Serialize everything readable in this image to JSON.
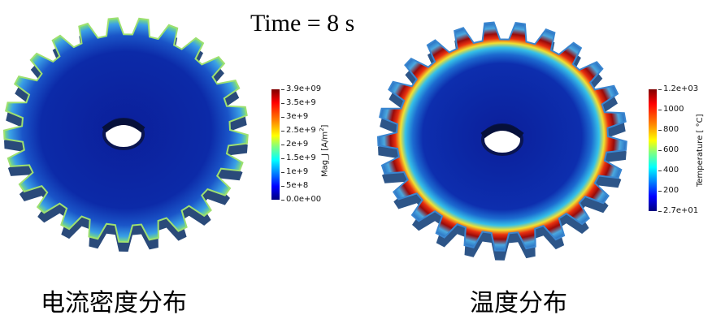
{
  "title": "Time = 8 s",
  "left_panel": {
    "caption": "电流密度分布",
    "colorbar": {
      "title_prefix": "Mag_J [A/m",
      "title_sup": "2",
      "title_suffix": "]",
      "ticks": [
        "3.9e+09",
        "3.5e+9",
        "3e+9",
        "2.5e+9",
        "2e+9",
        "1.5e+9",
        "1e+9",
        "5e+8",
        "0.0e+00"
      ]
    }
  },
  "right_panel": {
    "caption": "温度分布",
    "colorbar": {
      "title": "Temperature [ °C]",
      "ticks": [
        "1.2e+03",
        "1000",
        "800",
        "600",
        "400",
        "200",
        "2.7e+01"
      ]
    }
  },
  "colors": {
    "jet_dark_blue": "#0a1c8a",
    "cbar_top": "#7f0000",
    "cbar_bottom": "#00007f"
  }
}
